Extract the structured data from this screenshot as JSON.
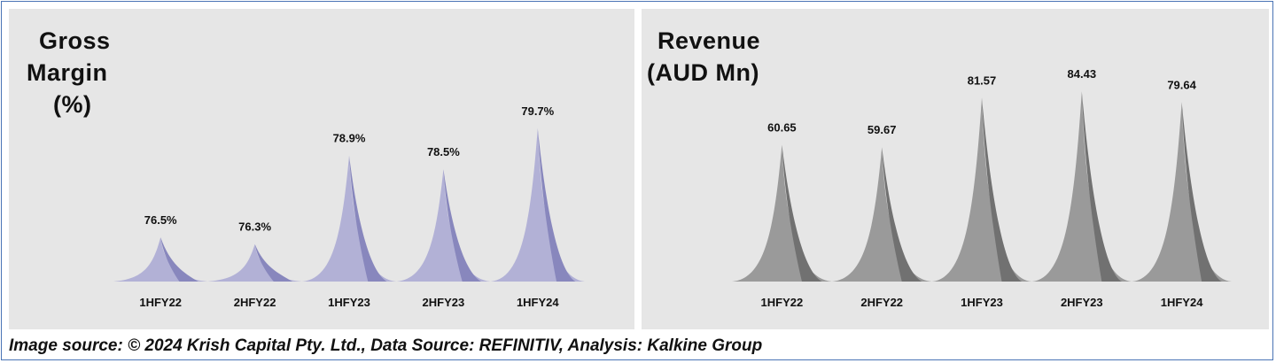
{
  "chart_data": [
    {
      "type": "area",
      "title_lines": [
        "Gross",
        "Margin",
        "(%)"
      ],
      "categories": [
        "1HFY22",
        "2HFY22",
        "1HFY23",
        "2HFY23",
        "1HFY24"
      ],
      "values": [
        76.5,
        76.3,
        78.9,
        78.5,
        79.7
      ],
      "value_labels": [
        "76.5%",
        "76.3%",
        "78.9%",
        "78.5%",
        "79.7%"
      ],
      "ylim": [
        75.2,
        80.4
      ],
      "colors": {
        "light": "#b2b1d6",
        "dark": "#8887bd"
      }
    },
    {
      "type": "area",
      "title_lines": [
        "Revenue",
        "(AUD Mn)"
      ],
      "categories": [
        "1HFY22",
        "2HFY22",
        "1HFY23",
        "2HFY23",
        "1HFY24"
      ],
      "values": [
        60.65,
        59.67,
        81.57,
        84.43,
        79.64
      ],
      "value_labels": [
        "60.65",
        "59.67",
        "81.57",
        "84.43",
        "79.64"
      ],
      "ylim": [
        0,
        88
      ],
      "colors": {
        "light": "#9a9a9a",
        "dark": "#717171"
      }
    }
  ],
  "footer": "Image source: © 2024 Krish Capital Pty. Ltd., Data Source: REFINITIV, Analysis: Kalkine Group"
}
